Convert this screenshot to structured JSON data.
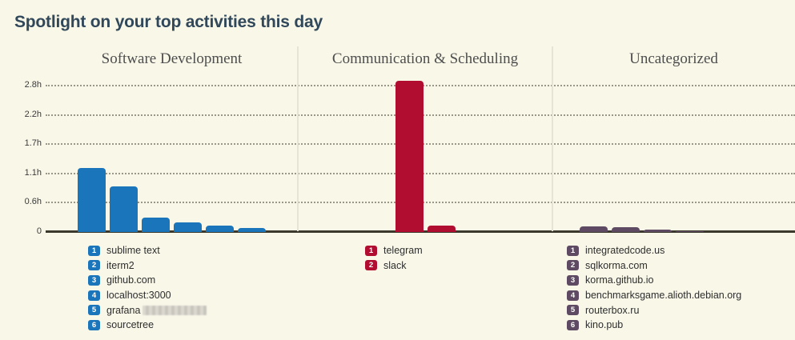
{
  "page": {
    "title": "Spotlight on your top activities this day"
  },
  "colors": {
    "background": "#f9f7e8",
    "title_text": "#31485a",
    "category_text": "#4e4e4e",
    "axis_line": "#3b392c",
    "software_development": "#1a75bb",
    "communication_scheduling": "#b00d31",
    "uncategorized": "#5e4a63"
  },
  "chart_data": {
    "type": "bar",
    "title": "Spotlight on your top activities this day",
    "ylabel": "hours",
    "ylim": [
      0,
      3.0
    ],
    "axis_max_hours": 2.8,
    "yticks": [
      "2.8h",
      "2.2h",
      "1.7h",
      "1.1h",
      "0.6h",
      "0"
    ],
    "grid": "horizontal dotted",
    "legend_position": "below each group",
    "groups": [
      {
        "name": "Software Development",
        "color": "#1a75bb",
        "items": [
          {
            "rank": 1,
            "label": "sublime text",
            "hours": 1.22
          },
          {
            "rank": 2,
            "label": "iterm2",
            "hours": 0.88
          },
          {
            "rank": 3,
            "label": "github.com",
            "hours": 0.27
          },
          {
            "rank": 4,
            "label": "localhost:3000",
            "hours": 0.18
          },
          {
            "rank": 5,
            "label": "grafana",
            "hours": 0.13,
            "redacted_suffix": true
          },
          {
            "rank": 6,
            "label": "sourcetree",
            "hours": 0.07
          }
        ]
      },
      {
        "name": "Communication & Scheduling",
        "color": "#b00d31",
        "items": [
          {
            "rank": 1,
            "label": "telegram",
            "hours": 2.9
          },
          {
            "rank": 2,
            "label": "slack",
            "hours": 0.13
          }
        ]
      },
      {
        "name": "Uncategorized",
        "color": "#5e4a63",
        "items": [
          {
            "rank": 1,
            "label": "integratedcode.us",
            "hours": 0.11
          },
          {
            "rank": 2,
            "label": "sqlkorma.com",
            "hours": 0.1
          },
          {
            "rank": 3,
            "label": "korma.github.io",
            "hours": 0.05
          },
          {
            "rank": 4,
            "label": "benchmarksgame.alioth.debian.org",
            "hours": 0.02
          },
          {
            "rank": 5,
            "label": "routerbox.ru",
            "hours": 0.0
          },
          {
            "rank": 6,
            "label": "kino.pub",
            "hours": 0.0
          }
        ]
      }
    ]
  }
}
